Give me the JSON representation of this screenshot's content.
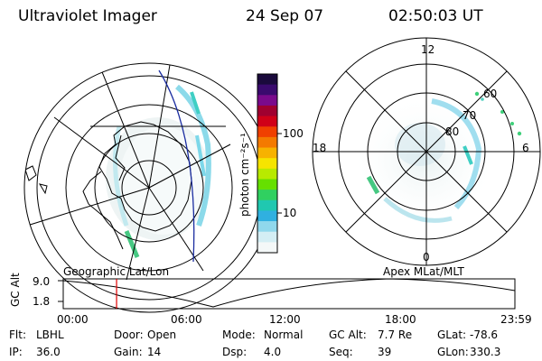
{
  "header": {
    "instrument": "Ultraviolet Imager",
    "date": "24 Sep 07",
    "time": "02:50:03 UT"
  },
  "colorbar": {
    "unit_label": "photon cm⁻²s⁻¹",
    "ticks": [
      "100",
      "10"
    ],
    "colors": [
      "#1a0a3c",
      "#3a0a6e",
      "#7a0a8c",
      "#a00030",
      "#d00018",
      "#f04000",
      "#f47a00",
      "#f7b200",
      "#f6e400",
      "#b8ea00",
      "#66e000",
      "#30d060",
      "#20c8b0",
      "#30b0e0",
      "#90d8ec",
      "#d4eef4",
      "#f4f8f8"
    ]
  },
  "left_panel": {
    "label": "Geographic Lat/Lon"
  },
  "right_panel": {
    "label": "Apex MLat/MLT",
    "lat_labels": [
      "60",
      "70",
      "80"
    ],
    "mlt_labels": {
      "top": "12",
      "left": "18",
      "right": "6",
      "bottom": "0"
    }
  },
  "timeline": {
    "y_axis_label": "GC Alt",
    "y_ticks": [
      "9.0",
      "1.8"
    ],
    "x_ticks": [
      "00:00",
      "06:00",
      "12:00",
      "18:00",
      "23:59"
    ],
    "marker_time": "02:50:03",
    "marker_color": "#e00000"
  },
  "metadata": [
    [
      {
        "label": "Flt:",
        "value": "LBHL"
      },
      {
        "label": "Door:",
        "value": "Open"
      },
      {
        "label": "Mode:",
        "value": "Normal"
      },
      {
        "label": "GC Alt:",
        "value": "7.7 Re"
      },
      {
        "label": "GLat:",
        "value": "-78.6"
      }
    ],
    [
      {
        "label": "IP:",
        "value": "36.0"
      },
      {
        "label": "Gain:",
        "value": "14"
      },
      {
        "label": "Dsp:",
        "value": "4.0"
      },
      {
        "label": "Seq:",
        "value": "39"
      },
      {
        "label": "GLon:",
        "value": "330.3"
      }
    ]
  ]
}
